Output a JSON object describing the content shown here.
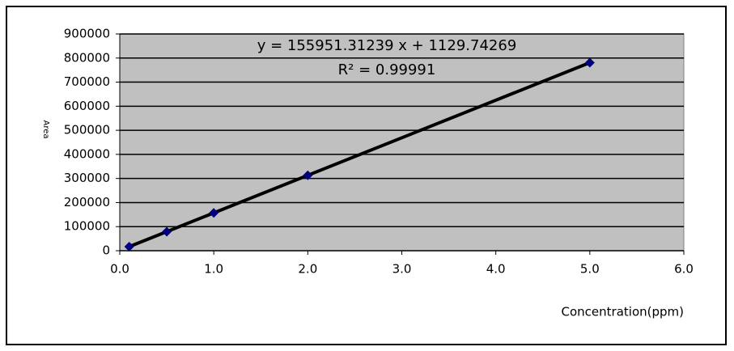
{
  "chart_data": {
    "type": "scatter",
    "x_label": "Concentration(ppm)",
    "y_label": "Area",
    "x": [
      0.1,
      0.5,
      1.0,
      2.0,
      5.0
    ],
    "series": [
      {
        "color": "#00007f",
        "values": [
          16700,
          79100,
          157100,
          313000,
          780900
        ]
      }
    ],
    "trendline": {
      "slope": 155951.31239,
      "intercept": 1129.74269,
      "color": "#000000",
      "equation": "y = 155951.31239  x + 1129.74269",
      "r_squared": "R² = 0.99991"
    },
    "xlim": [
      0,
      6
    ],
    "xticks": [
      {
        "value": 0,
        "label": "0.0"
      },
      {
        "value": 1,
        "label": "1.0"
      },
      {
        "value": 2,
        "label": "2.0"
      },
      {
        "value": 3,
        "label": "3.0"
      },
      {
        "value": 4,
        "label": "4.0"
      },
      {
        "value": 5,
        "label": "5.0"
      },
      {
        "value": 6,
        "label": "6.0"
      }
    ],
    "ylim": [
      0,
      900000
    ],
    "yticks": [
      0,
      100000,
      200000,
      300000,
      400000,
      500000,
      600000,
      700000,
      800000,
      900000
    ],
    "grid": true,
    "plot_background": "#c0c0c0"
  }
}
